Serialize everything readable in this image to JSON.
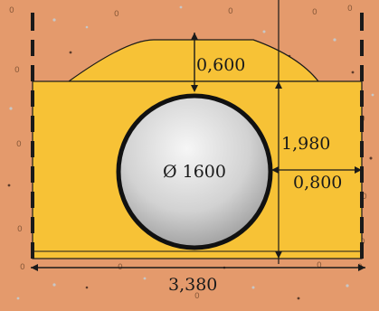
{
  "diagram": {
    "pipe_label": "Ø 1600",
    "dimensions": {
      "cover_height": "0,600",
      "total_height": "1,980",
      "side_clearance": "0,800",
      "total_width": "3,380"
    },
    "colors": {
      "soil": "#e49a6c",
      "bedding": "#f7c236",
      "outline": "#1a1a1a",
      "pipe_light": "#f4f4f4",
      "pipe_dark": "#8e8e8e"
    }
  }
}
